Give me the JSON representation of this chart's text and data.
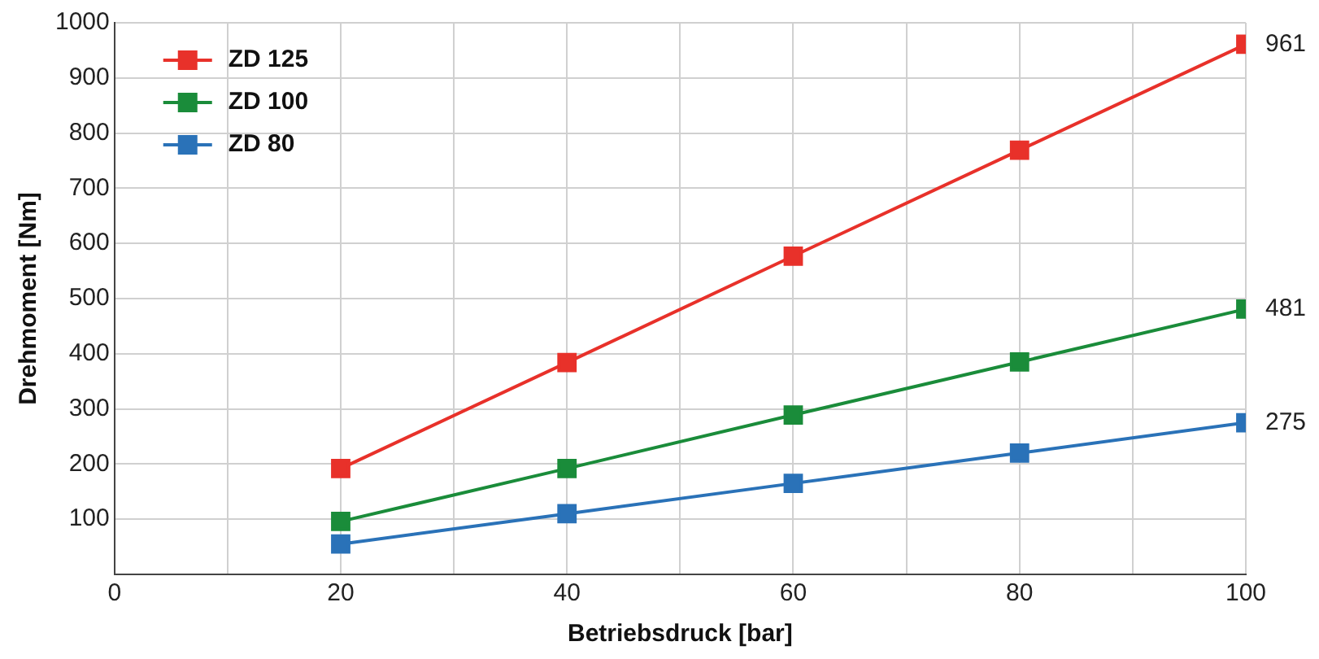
{
  "chart_data": {
    "type": "line",
    "xlabel": "Betriebsdruck [bar]",
    "ylabel": "Drehmoment [Nm]",
    "x": [
      20,
      40,
      60,
      80,
      100
    ],
    "series": [
      {
        "name": "ZD 125",
        "color": "#e8312a",
        "values": [
          192,
          384,
          577,
          769,
          961
        ],
        "value_labels": [
          null,
          null,
          null,
          null,
          "961"
        ]
      },
      {
        "name": "ZD 100",
        "color": "#1a8c3a",
        "values": [
          96,
          192,
          289,
          385,
          481
        ],
        "value_labels": [
          null,
          null,
          null,
          null,
          "481"
        ]
      },
      {
        "name": "ZD 80",
        "color": "#2a72b8",
        "values": [
          55,
          110,
          165,
          220,
          275
        ],
        "value_labels": [
          null,
          null,
          null,
          null,
          "275"
        ]
      }
    ],
    "xlim": [
      0,
      100
    ],
    "xticks": [
      0,
      {
        "value": 10,
        "label": null
      },
      20,
      {
        "value": 30,
        "label": null
      },
      40,
      {
        "value": 50,
        "label": null
      },
      60,
      {
        "value": 70,
        "label": null
      },
      80,
      {
        "value": 90,
        "label": null
      },
      100
    ],
    "ylim": [
      0,
      1000
    ],
    "yticks": [
      {
        "value": 0,
        "label": null
      },
      100,
      200,
      300,
      400,
      500,
      600,
      700,
      800,
      900,
      1000
    ],
    "grid": true,
    "legend": "top left",
    "marker": "square",
    "line_style": "solid"
  }
}
